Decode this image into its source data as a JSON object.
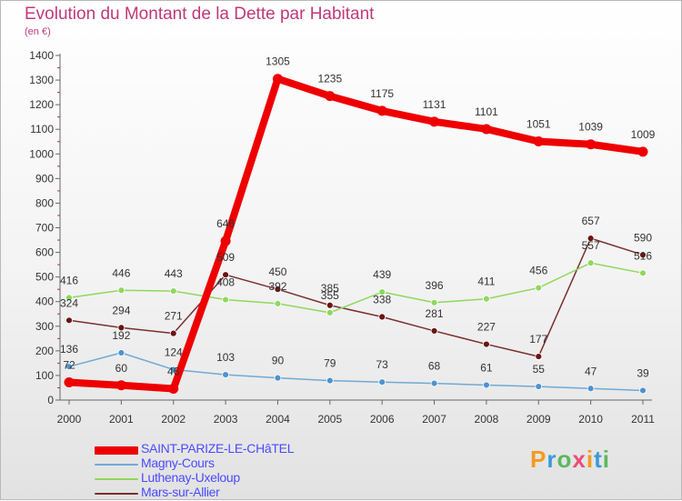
{
  "title": "Evolution du Montant de la Dette par Habitant",
  "unit": "(en €)",
  "logo": {
    "text": "Proxiti",
    "colors": [
      "#f39a1d",
      "#3a9ad9",
      "#5cb85c",
      "#e94e77",
      "#f39a1d",
      "#3a9ad9",
      "#5cb85c"
    ]
  },
  "chart_data": {
    "type": "line",
    "x": [
      "2000",
      "2001",
      "2002",
      "2003",
      "2004",
      "2005",
      "2006",
      "2007",
      "2008",
      "2009",
      "2010",
      "2011"
    ],
    "ylim": [
      0,
      1400
    ],
    "yticks": [
      0,
      100,
      200,
      300,
      400,
      500,
      600,
      700,
      800,
      900,
      1000,
      1100,
      1200,
      1300,
      1400
    ],
    "grid": false,
    "legend_position": "bottom-left",
    "series": [
      {
        "name": "Mars-sur-Allier",
        "color": "#7a2f2f",
        "point_color": "#6b1414",
        "width": 1.5,
        "values": [
          324,
          294,
          271,
          509,
          450,
          385,
          338,
          281,
          227,
          177,
          657,
          590
        ],
        "labels": [
          "324",
          "294",
          "271",
          "509",
          "450",
          "385",
          "338",
          "281",
          "227",
          "177",
          "657",
          "590"
        ]
      },
      {
        "name": "Luthenay-Uxeloup",
        "color": "#8fd85e",
        "point_color": "#8fd85e",
        "width": 1.5,
        "values": [
          416,
          446,
          443,
          408,
          392,
          355,
          439,
          396,
          411,
          456,
          557,
          516
        ],
        "labels": [
          "416",
          "446",
          "443",
          "408",
          "392",
          "355",
          "439",
          "396",
          "411",
          "456",
          "557",
          "516"
        ]
      },
      {
        "name": "Magny-Cours",
        "color": "#6fa9d6",
        "point_color": "#4f93cf",
        "width": 1.5,
        "values": [
          136,
          192,
          124,
          103,
          90,
          79,
          73,
          68,
          61,
          55,
          47,
          39
        ],
        "labels": [
          "136",
          "192",
          "124",
          "103",
          "90",
          "79",
          "73",
          "68",
          "61",
          "55",
          "47",
          "39"
        ]
      },
      {
        "name": "SAINT-PARIZE-LE-CHâTEL",
        "color": "#ee0000",
        "point_color": "#ee0000",
        "width": 8,
        "values": [
          72,
          60,
          46,
          646,
          1305,
          1235,
          1175,
          1131,
          1101,
          1051,
          1039,
          1009
        ],
        "labels": [
          "72",
          "60",
          "46",
          "646",
          "1305",
          "1235",
          "1175",
          "1131",
          "1101",
          "1051",
          "1039",
          "1009"
        ]
      }
    ]
  },
  "legend": [
    {
      "label": "SAINT-PARIZE-LE-CHâTEL",
      "color": "#ee0000",
      "thick": true
    },
    {
      "label": "Magny-Cours",
      "color": "#6fa9d6",
      "thick": false
    },
    {
      "label": "Luthenay-Uxeloup",
      "color": "#8fd85e",
      "thick": false
    },
    {
      "label": "Mars-sur-Allier",
      "color": "#7a2f2f",
      "thick": false
    }
  ]
}
